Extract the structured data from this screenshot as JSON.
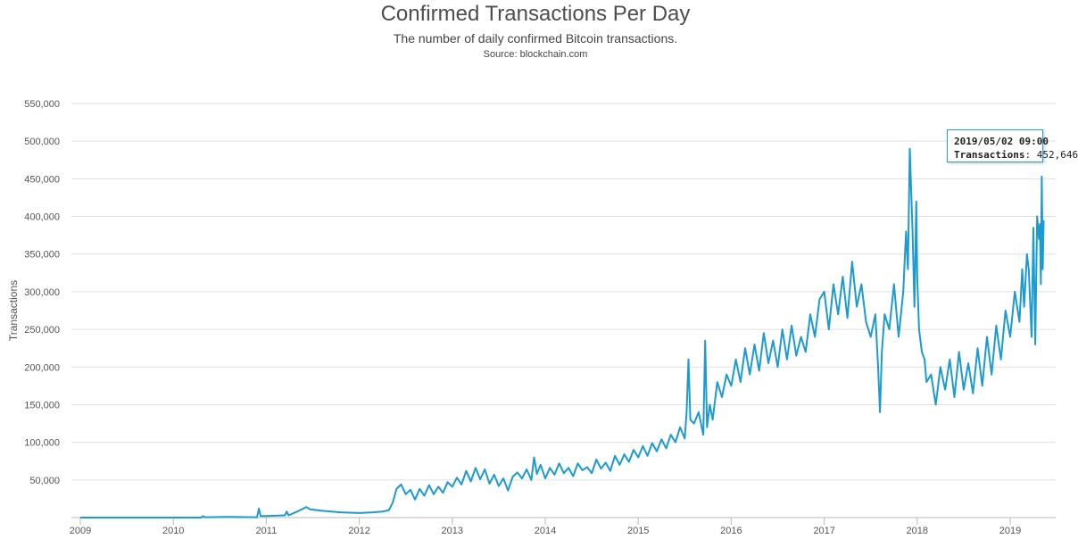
{
  "header": {
    "title": "Confirmed Transactions Per Day",
    "subtitle": "The number of daily confirmed Bitcoin transactions.",
    "source": "Source: blockchain.com"
  },
  "tooltip": {
    "date": "2019/05/02 09:00",
    "series_label": "Transactions",
    "value_text": "452,646"
  },
  "colors": {
    "line": "#1b9bd1",
    "grid": "#e0e0e0",
    "tooltip_border": "#2aa0d6"
  },
  "chart_data": {
    "type": "line",
    "title": "Confirmed Transactions Per Day",
    "subtitle": "The number of daily confirmed Bitcoin transactions.",
    "source": "Source: blockchain.com",
    "xlabel": "",
    "ylabel": "Transactions",
    "xlim": [
      2009.0,
      2019.5
    ],
    "ylim": [
      0,
      550000
    ],
    "grid": true,
    "legend": "none",
    "y_ticks": [
      50000,
      100000,
      150000,
      200000,
      250000,
      300000,
      350000,
      400000,
      450000,
      500000,
      550000
    ],
    "y_tick_labels": [
      "50,000",
      "100,000",
      "150,000",
      "200,000",
      "250,000",
      "300,000",
      "350,000",
      "400,000",
      "450,000",
      "500,000",
      "550,000"
    ],
    "x_ticks": [
      2009,
      2010,
      2011,
      2012,
      2013,
      2014,
      2015,
      2016,
      2017,
      2018,
      2019
    ],
    "x_tick_labels": [
      "2009",
      "2010",
      "2011",
      "2012",
      "2013",
      "2014",
      "2015",
      "2016",
      "2017",
      "2018",
      "2019"
    ],
    "series": [
      {
        "name": "Transactions",
        "color": "#1b9bd1",
        "x": [
          2009.0,
          2009.5,
          2010.0,
          2010.3,
          2010.32,
          2010.34,
          2010.6,
          2010.9,
          2010.92,
          2010.94,
          2011.0,
          2011.2,
          2011.22,
          2011.24,
          2011.35,
          2011.43,
          2011.47,
          2011.6,
          2011.8,
          2012.0,
          2012.15,
          2012.25,
          2012.32,
          2012.36,
          2012.4,
          2012.45,
          2012.5,
          2012.55,
          2012.6,
          2012.65,
          2012.7,
          2012.75,
          2012.8,
          2012.85,
          2012.9,
          2012.95,
          2013.0,
          2013.05,
          2013.1,
          2013.15,
          2013.2,
          2013.25,
          2013.3,
          2013.35,
          2013.4,
          2013.45,
          2013.5,
          2013.55,
          2013.6,
          2013.65,
          2013.7,
          2013.75,
          2013.8,
          2013.85,
          2013.88,
          2013.91,
          2013.95,
          2014.0,
          2014.05,
          2014.1,
          2014.15,
          2014.2,
          2014.25,
          2014.3,
          2014.35,
          2014.4,
          2014.45,
          2014.5,
          2014.55,
          2014.6,
          2014.65,
          2014.7,
          2014.75,
          2014.8,
          2014.85,
          2014.9,
          2014.95,
          2015.0,
          2015.05,
          2015.1,
          2015.15,
          2015.2,
          2015.25,
          2015.3,
          2015.35,
          2015.4,
          2015.45,
          2015.5,
          2015.52,
          2015.54,
          2015.56,
          2015.6,
          2015.65,
          2015.7,
          2015.72,
          2015.74,
          2015.77,
          2015.8,
          2015.85,
          2015.9,
          2015.95,
          2016.0,
          2016.05,
          2016.1,
          2016.15,
          2016.2,
          2016.25,
          2016.3,
          2016.35,
          2016.4,
          2016.45,
          2016.5,
          2016.55,
          2016.6,
          2016.65,
          2016.7,
          2016.75,
          2016.8,
          2016.85,
          2016.9,
          2016.95,
          2017.0,
          2017.05,
          2017.1,
          2017.15,
          2017.2,
          2017.25,
          2017.3,
          2017.35,
          2017.4,
          2017.45,
          2017.5,
          2017.55,
          2017.58,
          2017.6,
          2017.62,
          2017.65,
          2017.7,
          2017.75,
          2017.8,
          2017.85,
          2017.88,
          2017.9,
          2017.92,
          2017.95,
          2017.97,
          2017.99,
          2018.0,
          2018.02,
          2018.05,
          2018.08,
          2018.1,
          2018.15,
          2018.2,
          2018.25,
          2018.3,
          2018.35,
          2018.4,
          2018.45,
          2018.5,
          2018.55,
          2018.6,
          2018.65,
          2018.7,
          2018.75,
          2018.8,
          2018.85,
          2018.9,
          2018.95,
          2019.0,
          2019.05,
          2019.1,
          2019.13,
          2019.15,
          2019.18,
          2019.2,
          2019.23,
          2019.25,
          2019.27,
          2019.29,
          2019.31,
          2019.32,
          2019.33,
          2019.34,
          2019.35,
          2019.36
        ],
        "values": [
          0,
          0,
          0,
          0,
          2000,
          500,
          1000,
          500,
          12000,
          2000,
          2000,
          3000,
          8000,
          3000,
          9000,
          14000,
          11000,
          9000,
          7000,
          6000,
          7000,
          8000,
          10000,
          20000,
          38000,
          44000,
          31000,
          37000,
          24000,
          38000,
          29000,
          43000,
          31000,
          41000,
          33000,
          47000,
          41000,
          53000,
          44000,
          62000,
          48000,
          66000,
          51000,
          64000,
          45000,
          57000,
          42000,
          52000,
          36000,
          54000,
          60000,
          52000,
          64000,
          50000,
          80000,
          58000,
          70000,
          52000,
          66000,
          57000,
          72000,
          59000,
          66000,
          55000,
          72000,
          63000,
          67000,
          59000,
          77000,
          65000,
          73000,
          62000,
          82000,
          70000,
          84000,
          74000,
          90000,
          80000,
          95000,
          82000,
          99000,
          88000,
          104000,
          92000,
          110000,
          100000,
          120000,
          105000,
          140000,
          210000,
          130000,
          125000,
          140000,
          110000,
          235000,
          120000,
          150000,
          130000,
          180000,
          160000,
          190000,
          175000,
          210000,
          180000,
          225000,
          190000,
          230000,
          195000,
          245000,
          205000,
          235000,
          200000,
          250000,
          210000,
          255000,
          215000,
          240000,
          220000,
          270000,
          240000,
          290000,
          300000,
          250000,
          310000,
          270000,
          320000,
          265000,
          340000,
          280000,
          310000,
          260000,
          240000,
          270000,
          200000,
          140000,
          220000,
          270000,
          250000,
          310000,
          240000,
          300000,
          380000,
          330000,
          490000,
          380000,
          280000,
          420000,
          320000,
          250000,
          220000,
          210000,
          180000,
          190000,
          150000,
          200000,
          170000,
          210000,
          160000,
          220000,
          170000,
          205000,
          165000,
          225000,
          175000,
          240000,
          190000,
          255000,
          210000,
          275000,
          240000,
          300000,
          260000,
          330000,
          280000,
          350000,
          330000,
          240000,
          385000,
          230000,
          400000,
          370000,
          390000,
          310000,
          453000,
          330000,
          395000
        ]
      }
    ]
  }
}
